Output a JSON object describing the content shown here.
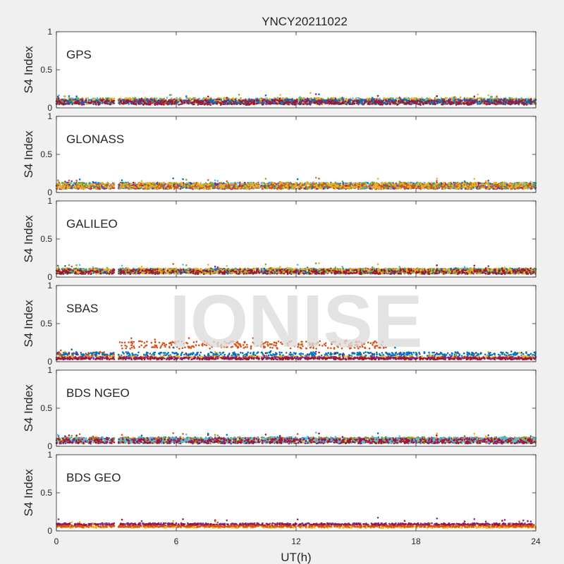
{
  "title": "YNCY20211022",
  "watermark": "IONISE",
  "chart_data": {
    "type": "scatter",
    "title": "YNCY20211022",
    "xlabel": "UT(h)",
    "ylabel": "S4 Index",
    "xlim": [
      0,
      24
    ],
    "ylim": [
      0,
      1
    ],
    "x_ticks": [
      "0",
      "6",
      "12",
      "18",
      "24"
    ],
    "y_ticks": [
      "0",
      "0.5",
      "1"
    ],
    "grid": false,
    "data_gap_hours": [
      2.9,
      3.1
    ],
    "palette": [
      "#0072BD",
      "#D95319",
      "#EDB120",
      "#7E2F8E",
      "#77AC30",
      "#4DBEEE",
      "#A2142F"
    ],
    "panels": [
      {
        "label": "GPS",
        "series": [
          {
            "color": "#4DBEEE",
            "baseline": 0.09,
            "spread": 0.04
          },
          {
            "color": "#77AC30",
            "baseline": 0.09,
            "spread": 0.04
          },
          {
            "color": "#D95319",
            "baseline": 0.08,
            "spread": 0.035
          },
          {
            "color": "#EDB120",
            "baseline": 0.09,
            "spread": 0.04
          },
          {
            "color": "#7E2F8E",
            "baseline": 0.08,
            "spread": 0.035
          },
          {
            "color": "#0072BD",
            "baseline": 0.08,
            "spread": 0.03
          },
          {
            "color": "#A2142F",
            "baseline": 0.07,
            "spread": 0.03
          }
        ]
      },
      {
        "label": "GLONASS",
        "series": [
          {
            "color": "#A2142F",
            "baseline": 0.09,
            "spread": 0.04
          },
          {
            "color": "#0072BD",
            "baseline": 0.09,
            "spread": 0.04
          },
          {
            "color": "#4DBEEE",
            "baseline": 0.09,
            "spread": 0.04
          },
          {
            "color": "#7E2F8E",
            "baseline": 0.08,
            "spread": 0.035
          },
          {
            "color": "#77AC30",
            "baseline": 0.09,
            "spread": 0.04
          },
          {
            "color": "#D95319",
            "baseline": 0.08,
            "spread": 0.035
          },
          {
            "color": "#EDB120",
            "baseline": 0.09,
            "spread": 0.04
          }
        ]
      },
      {
        "label": "GALILEO",
        "series": [
          {
            "color": "#4DBEEE",
            "baseline": 0.08,
            "spread": 0.035
          },
          {
            "color": "#D95319",
            "baseline": 0.08,
            "spread": 0.035
          },
          {
            "color": "#7E2F8E",
            "baseline": 0.07,
            "spread": 0.03
          },
          {
            "color": "#0072BD",
            "baseline": 0.08,
            "spread": 0.03
          },
          {
            "color": "#77AC30",
            "baseline": 0.08,
            "spread": 0.035
          },
          {
            "color": "#EDB120",
            "baseline": 0.08,
            "spread": 0.035
          },
          {
            "color": "#A2142F",
            "baseline": 0.07,
            "spread": 0.03
          }
        ]
      },
      {
        "label": "SBAS",
        "series": [
          {
            "color": "#D95319",
            "baseline": 0.22,
            "spread": 0.05,
            "start": 3.1,
            "end": 16.5
          },
          {
            "color": "#D95319",
            "baseline": 0.1,
            "spread": 0.03,
            "start": 0,
            "end": 2.9
          },
          {
            "color": "#0072BD",
            "baseline": 0.1,
            "spread": 0.025
          },
          {
            "color": "#EDB120",
            "baseline": 0.06,
            "spread": 0.015
          },
          {
            "color": "#7E2F8E",
            "baseline": 0.05,
            "spread": 0.015
          },
          {
            "color": "#A2142F",
            "baseline": 0.04,
            "spread": 0.012
          }
        ]
      },
      {
        "label": "BDS NGEO",
        "series": [
          {
            "color": "#0072BD",
            "baseline": 0.08,
            "spread": 0.04
          },
          {
            "color": "#EDB120",
            "baseline": 0.08,
            "spread": 0.035
          },
          {
            "color": "#D95319",
            "baseline": 0.08,
            "spread": 0.035
          },
          {
            "color": "#77AC30",
            "baseline": 0.08,
            "spread": 0.04
          },
          {
            "color": "#7E2F8E",
            "baseline": 0.07,
            "spread": 0.035
          },
          {
            "color": "#4DBEEE",
            "baseline": 0.08,
            "spread": 0.035
          },
          {
            "color": "#A2142F",
            "baseline": 0.07,
            "spread": 0.03
          }
        ]
      },
      {
        "label": "BDS GEO",
        "series": [
          {
            "color": "#7E2F8E",
            "baseline": 0.09,
            "spread": 0.012
          },
          {
            "color": "#A2142F",
            "baseline": 0.08,
            "spread": 0.012
          },
          {
            "color": "#EDB120",
            "baseline": 0.05,
            "spread": 0.01
          },
          {
            "color": "#D95319",
            "baseline": 0.06,
            "spread": 0.01
          }
        ]
      }
    ]
  }
}
